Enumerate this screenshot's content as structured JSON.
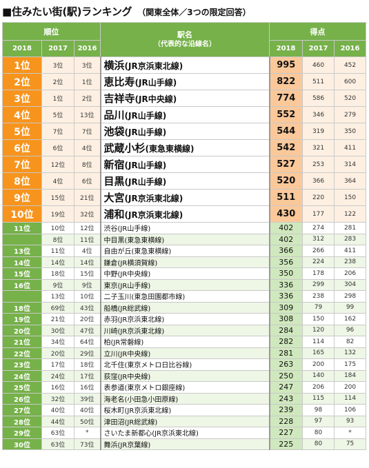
{
  "title": "■住みたい街(駅)ランキング",
  "subtitle": "（関東全体／3つの限定回答）",
  "header": {
    "rank": "順位",
    "station": "駅名",
    "station_sub": "（代表的な沿線名）",
    "score": "得点",
    "years": [
      "2018",
      "2017",
      "2016"
    ]
  },
  "rows": [
    {
      "r18": "1位",
      "r17": "3位",
      "r16": "3位",
      "station": "横浜",
      "line": "(JR京浜東北線)",
      "s18": "995",
      "s17": "460",
      "s16": "452"
    },
    {
      "r18": "2位",
      "r17": "2位",
      "r16": "1位",
      "station": "恵比寿",
      "line": "(JR山手線)",
      "s18": "822",
      "s17": "511",
      "s16": "600"
    },
    {
      "r18": "3位",
      "r17": "1位",
      "r16": "2位",
      "station": "吉祥寺",
      "line": "(JR中央線)",
      "s18": "774",
      "s17": "586",
      "s16": "520"
    },
    {
      "r18": "4位",
      "r17": "5位",
      "r16": "13位",
      "station": "品川",
      "line": "(JR山手線)",
      "s18": "552",
      "s17": "346",
      "s16": "279"
    },
    {
      "r18": "5位",
      "r17": "7位",
      "r16": "7位",
      "station": "池袋",
      "line": "(JR山手線)",
      "s18": "544",
      "s17": "319",
      "s16": "350"
    },
    {
      "r18": "6位",
      "r17": "6位",
      "r16": "4位",
      "station": "武蔵小杉",
      "line": "(東急東横線)",
      "s18": "542",
      "s17": "321",
      "s16": "411"
    },
    {
      "r18": "7位",
      "r17": "12位",
      "r16": "8位",
      "station": "新宿",
      "line": "(JR山手線)",
      "s18": "527",
      "s17": "253",
      "s16": "314"
    },
    {
      "r18": "8位",
      "r17": "4位",
      "r16": "6位",
      "station": "目黒",
      "line": "(JR山手線)",
      "s18": "520",
      "s17": "366",
      "s16": "364"
    },
    {
      "r18": "9位",
      "r17": "15位",
      "r16": "21位",
      "station": "大宮",
      "line": "(JR京浜東北線)",
      "s18": "511",
      "s17": "220",
      "s16": "150"
    },
    {
      "r18": "10位",
      "r17": "19位",
      "r16": "32位",
      "station": "浦和",
      "line": "(JR京浜東北線)",
      "s18": "430",
      "s17": "177",
      "s16": "122"
    },
    {
      "r18": "11位",
      "r17": "10位",
      "r16": "12位",
      "station": "渋谷",
      "line": "(JR山手線)",
      "s18": "402",
      "s17": "274",
      "s16": "281"
    },
    {
      "r18": "",
      "r17": "8位",
      "r16": "11位",
      "station": "中目黒",
      "line": "(東急東横線)",
      "s18": "402",
      "s17": "312",
      "s16": "283"
    },
    {
      "r18": "13位",
      "r17": "11位",
      "r16": "4位",
      "station": "自由が丘",
      "line": "(東急東横線)",
      "s18": "366",
      "s17": "266",
      "s16": "411"
    },
    {
      "r18": "14位",
      "r17": "14位",
      "r16": "14位",
      "station": "鎌倉",
      "line": "(JR横須賀線)",
      "s18": "356",
      "s17": "224",
      "s16": "238"
    },
    {
      "r18": "15位",
      "r17": "18位",
      "r16": "15位",
      "station": "中野",
      "line": "(JR中央線)",
      "s18": "350",
      "s17": "178",
      "s16": "206"
    },
    {
      "r18": "16位",
      "r17": "9位",
      "r16": "9位",
      "station": "東京",
      "line": "(JR山手線)",
      "s18": "336",
      "s17": "299",
      "s16": "304"
    },
    {
      "r18": "",
      "r17": "13位",
      "r16": "10位",
      "station": "二子玉川",
      "line": "(東急田園都市線)",
      "s18": "336",
      "s17": "238",
      "s16": "298"
    },
    {
      "r18": "18位",
      "r17": "69位",
      "r16": "43位",
      "station": "船橋",
      "line": "(JR総武線)",
      "s18": "309",
      "s17": "79",
      "s16": "99"
    },
    {
      "r18": "19位",
      "r17": "21位",
      "r16": "20位",
      "station": "赤羽",
      "line": "(JR京浜東北線)",
      "s18": "308",
      "s17": "150",
      "s16": "162"
    },
    {
      "r18": "20位",
      "r17": "30位",
      "r16": "47位",
      "station": "川崎",
      "line": "(JR京浜東北線)",
      "s18": "284",
      "s17": "120",
      "s16": "96"
    },
    {
      "r18": "21位",
      "r17": "34位",
      "r16": "64位",
      "station": "柏",
      "line": "(JR常磐線)",
      "s18": "282",
      "s17": "114",
      "s16": "82"
    },
    {
      "r18": "22位",
      "r17": "20位",
      "r16": "29位",
      "station": "立川",
      "line": "(JR中央線)",
      "s18": "281",
      "s17": "165",
      "s16": "132"
    },
    {
      "r18": "23位",
      "r17": "17位",
      "r16": "18位",
      "station": "北千住",
      "line": "(東京メトロ日比谷線)",
      "s18": "263",
      "s17": "200",
      "s16": "175"
    },
    {
      "r18": "24位",
      "r17": "24位",
      "r16": "17位",
      "station": "荻窪",
      "line": "(JR中央線)",
      "s18": "250",
      "s17": "140",
      "s16": "184"
    },
    {
      "r18": "25位",
      "r17": "16位",
      "r16": "16位",
      "station": "表参道",
      "line": "(東京メトロ銀座線)",
      "s18": "247",
      "s17": "206",
      "s16": "200"
    },
    {
      "r18": "26位",
      "r17": "32位",
      "r16": "39位",
      "station": "海老名",
      "line": "(小田急小田原線)",
      "s18": "243",
      "s17": "115",
      "s16": "114"
    },
    {
      "r18": "27位",
      "r17": "40位",
      "r16": "40位",
      "station": "桜木町",
      "line": "(JR京浜東北線)",
      "s18": "239",
      "s17": "98",
      "s16": "106"
    },
    {
      "r18": "28位",
      "r17": "44位",
      "r16": "50位",
      "station": "津田沼",
      "line": "(JR総武線)",
      "s18": "228",
      "s17": "97",
      "s16": "93"
    },
    {
      "r18": "29位",
      "r17": "63位",
      "r16": "*",
      "station": "さいたま新都心",
      "line": "(JR京浜東北線)",
      "s18": "227",
      "s17": "80",
      "s16": "*"
    },
    {
      "r18": "30位",
      "r17": "63位",
      "r16": "73位",
      "station": "舞浜",
      "line": "(JR京葉線)",
      "s18": "225",
      "s17": "80",
      "s16": "75"
    }
  ]
}
